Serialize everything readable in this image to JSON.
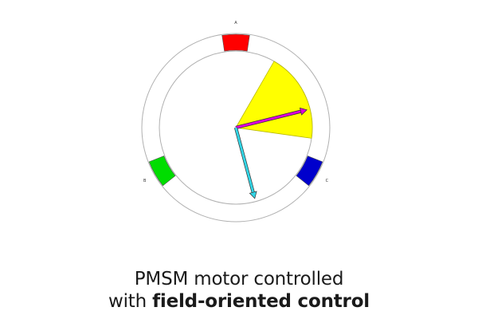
{
  "diagram": {
    "phases": [
      {
        "label": "A",
        "color": "#ff0000",
        "angle_deg": 0
      },
      {
        "label": "B",
        "color": "#00dd00",
        "angle_deg": 240
      },
      {
        "label": "C",
        "color": "#0000cc",
        "angle_deg": 120
      }
    ],
    "vectors": [
      {
        "id": "magenta-vector",
        "color": "#dd00dd",
        "angle_deg": 76
      },
      {
        "id": "cyan-vector",
        "color": "#33d6e6",
        "angle_deg": 165
      }
    ],
    "sector": {
      "color": "#ffff00",
      "start_deg": 30,
      "end_deg": 98
    }
  },
  "caption": {
    "line1": "PMSM motor controlled",
    "line2_prefix": "with ",
    "line2_bold": "field-oriented control"
  }
}
